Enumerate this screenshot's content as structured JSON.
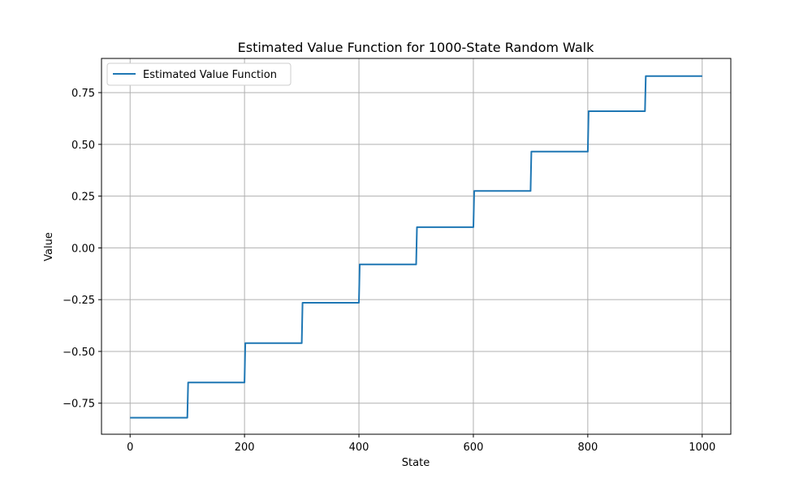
{
  "chart_data": {
    "type": "line",
    "title": "Estimated Value Function for 1000-State Random Walk",
    "xlabel": "State",
    "ylabel": "Value",
    "xlim": [
      -50,
      1050
    ],
    "ylim": [
      -0.9,
      0.915
    ],
    "xticks": [
      0,
      200,
      400,
      600,
      800,
      1000
    ],
    "xtick_labels": [
      "0",
      "200",
      "400",
      "600",
      "800",
      "1000"
    ],
    "yticks": [
      -0.75,
      -0.5,
      -0.25,
      0.0,
      0.25,
      0.5,
      0.75
    ],
    "ytick_labels": [
      "−0.75",
      "−0.50",
      "−0.25",
      "0.00",
      "0.25",
      "0.50",
      "0.75"
    ],
    "grid": true,
    "legend_position": "top-left",
    "series": [
      {
        "name": "Estimated Value Function",
        "color": "#1f77b4",
        "step_edges": [
          0,
          100,
          200,
          300,
          400,
          500,
          600,
          700,
          800,
          900,
          1000
        ],
        "step_values": [
          -0.82,
          -0.65,
          -0.46,
          -0.265,
          -0.08,
          0.1,
          0.275,
          0.465,
          0.66,
          0.83
        ]
      }
    ]
  }
}
